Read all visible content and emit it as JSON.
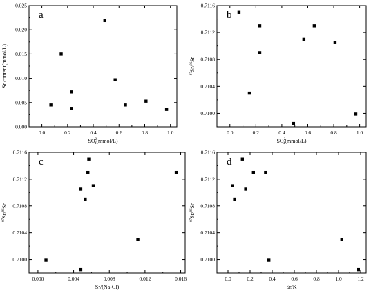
{
  "chart_data": [
    {
      "type": "scatter",
      "panel_label": "a",
      "xlabel_html": "SO<tspan baseline-shift='super' font-size='5'>2-</tspan><tspan baseline-shift='sub' font-size='5' dx='-5'>4</tspan>(mmol/L)",
      "xlabel": "SO4 2-(mmol/L)",
      "ylabel": "Sr content(mmol/L)",
      "xlim": [
        -0.1,
        1.05
      ],
      "ylim": [
        0,
        0.025
      ],
      "xticks": [
        0.0,
        0.2,
        0.4,
        0.6,
        0.8,
        1.0
      ],
      "xtick_labels": [
        "0.0",
        "0.2",
        "0.4",
        "0.6",
        "0.8",
        "1.0"
      ],
      "yticks": [
        0.0,
        0.005,
        0.01,
        0.015,
        0.02,
        0.025
      ],
      "ytick_labels": [
        "0.000",
        "0.005",
        "0.010",
        "0.015",
        "0.020",
        "0.025"
      ],
      "x": [
        0.07,
        0.15,
        0.23,
        0.23,
        0.49,
        0.57,
        0.65,
        0.81,
        0.97
      ],
      "y": [
        0.0045,
        0.015,
        0.0072,
        0.0038,
        0.0219,
        0.0097,
        0.0045,
        0.0053,
        0.0036
      ]
    },
    {
      "type": "scatter",
      "panel_label": "b",
      "xlabel": "SO4 2-(mmol/L)",
      "ylabel": "87Sr/86Sr",
      "xlim": [
        -0.1,
        1.05
      ],
      "ylim": [
        0.7098,
        0.7116
      ],
      "xticks": [
        0.0,
        0.2,
        0.4,
        0.6,
        0.8,
        1.0
      ],
      "xtick_labels": [
        "0.0",
        "0.2",
        "0.4",
        "0.6",
        "0.8",
        "1.0"
      ],
      "yticks": [
        0.71,
        0.7104,
        0.7108,
        0.7112,
        0.7116
      ],
      "ytick_labels": [
        "0.7100",
        "0.7104",
        "0.7108",
        "0.7112",
        "0.7116"
      ],
      "x": [
        0.07,
        0.15,
        0.23,
        0.23,
        0.49,
        0.57,
        0.65,
        0.81,
        0.97
      ],
      "y": [
        0.7115,
        0.7103,
        0.7113,
        0.7109,
        0.70985,
        0.7111,
        0.7113,
        0.71105,
        0.70999
      ]
    },
    {
      "type": "scatter",
      "panel_label": "c",
      "xlabel": "Sr/(Na-Cl)",
      "ylabel": "87Sr/86Sr",
      "xlim": [
        -0.001,
        0.0165
      ],
      "ylim": [
        0.7098,
        0.7116
      ],
      "xticks": [
        0.0,
        0.004,
        0.008,
        0.012,
        0.016
      ],
      "xtick_labels": [
        "0.000",
        "0.004",
        "0.008",
        "0.012",
        "0.016"
      ],
      "yticks": [
        0.71,
        0.7104,
        0.7108,
        0.7112,
        0.7116
      ],
      "ytick_labels": [
        "0.7100",
        "0.7104",
        "0.7108",
        "0.7112",
        "0.7116"
      ],
      "x": [
        0.0009,
        0.0048,
        0.0048,
        0.0053,
        0.0056,
        0.0057,
        0.0062,
        0.0112,
        0.0155
      ],
      "y": [
        0.70999,
        0.70985,
        0.71105,
        0.7109,
        0.7113,
        0.7115,
        0.7111,
        0.7103,
        0.7113
      ]
    },
    {
      "type": "scatter",
      "panel_label": "d",
      "xlabel": "Sr/K",
      "ylabel": "87Sr/86Sr",
      "xlim": [
        -0.1,
        1.25
      ],
      "ylim": [
        0.7098,
        0.7116
      ],
      "xticks": [
        0.0,
        0.2,
        0.4,
        0.6,
        0.8,
        1.0,
        1.2
      ],
      "xtick_labels": [
        "0.0",
        "0.2",
        "0.4",
        "0.6",
        "0.8",
        "1.0",
        "1.2"
      ],
      "yticks": [
        0.71,
        0.7104,
        0.7108,
        0.7112,
        0.7116
      ],
      "ytick_labels": [
        "0.7100",
        "0.7104",
        "0.7108",
        "0.7112",
        "0.7116"
      ],
      "x": [
        0.04,
        0.06,
        0.13,
        0.16,
        0.23,
        0.34,
        0.37,
        1.03,
        1.18
      ],
      "y": [
        0.7111,
        0.7109,
        0.7115,
        0.71105,
        0.7113,
        0.7113,
        0.70999,
        0.7103,
        0.70985
      ]
    }
  ]
}
